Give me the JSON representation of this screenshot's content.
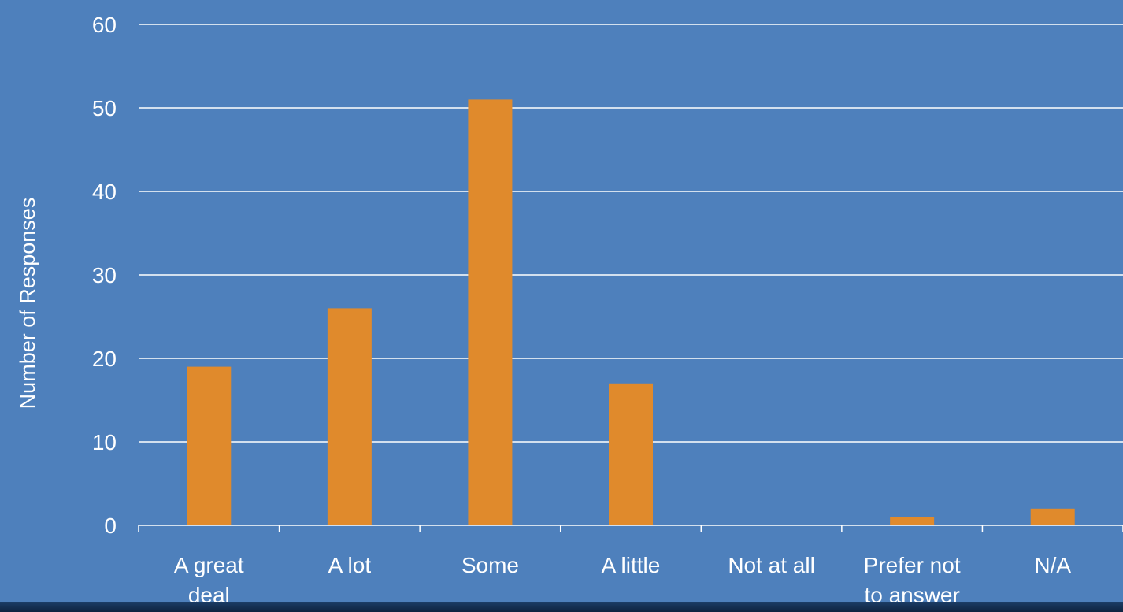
{
  "chart_data": {
    "type": "bar",
    "categories": [
      [
        "A great",
        "deal"
      ],
      [
        "A lot"
      ],
      [
        "Some"
      ],
      [
        "A little"
      ],
      [
        "Not at all"
      ],
      [
        "Prefer not",
        "to answer"
      ],
      [
        "N/A"
      ]
    ],
    "values": [
      19,
      26,
      51,
      17,
      0,
      1,
      2
    ],
    "ylabel": "Number of Responses",
    "ylim": [
      0,
      60
    ],
    "yticks": [
      "0",
      "10",
      "20",
      "30",
      "40",
      "50",
      "60"
    ],
    "grid": true,
    "bar_color": "#e08a2c",
    "background_color": "#4e80bc",
    "gridline_color": "#ffffff"
  }
}
